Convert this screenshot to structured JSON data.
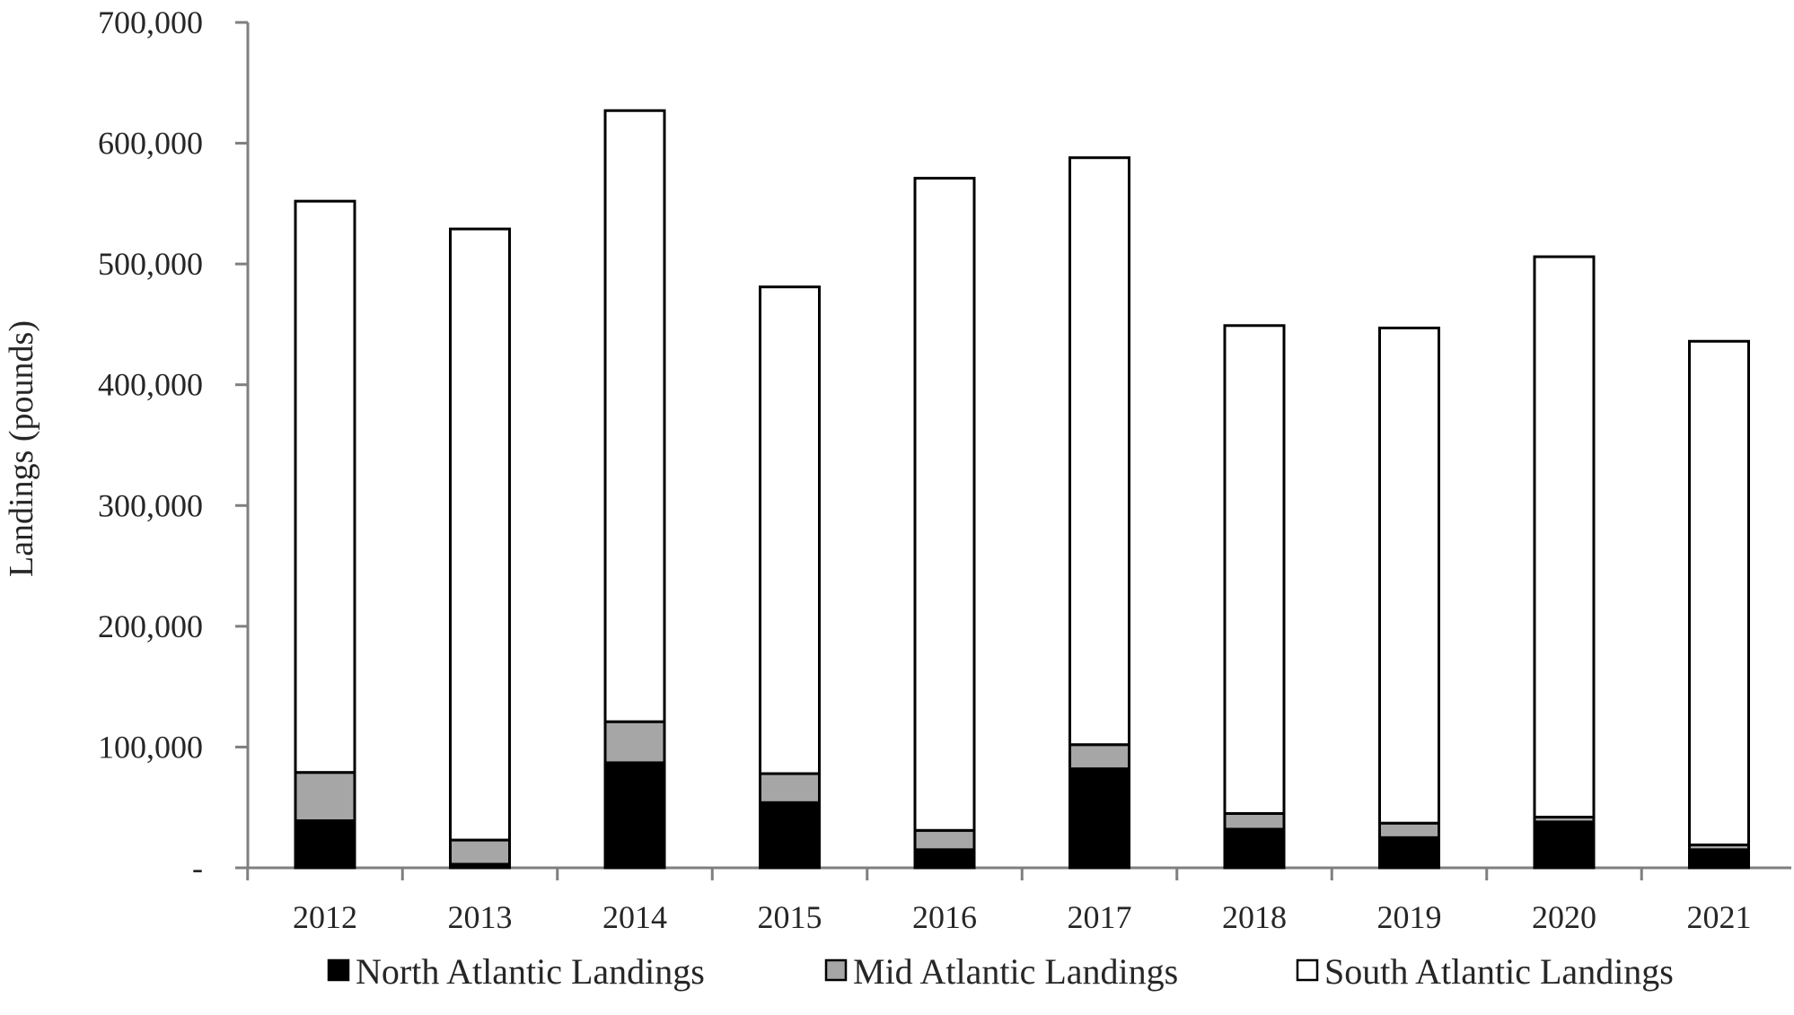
{
  "chart_data": {
    "type": "bar",
    "stacked": true,
    "title": "",
    "xlabel": "",
    "ylabel": "Landings (pounds)",
    "ylim": [
      0,
      700000
    ],
    "y_ticks": [
      0,
      100000,
      200000,
      300000,
      400000,
      500000,
      600000,
      700000
    ],
    "y_tick_labels": [
      "-",
      "100,000",
      "200,000",
      "300,000",
      "400,000",
      "500,000",
      "600,000",
      "700,000"
    ],
    "categories": [
      "2012",
      "2013",
      "2014",
      "2015",
      "2016",
      "2017",
      "2018",
      "2019",
      "2020",
      "2021"
    ],
    "series": [
      {
        "name": "North Atlantic Landings",
        "color": "#000000",
        "values": [
          39000,
          3000,
          87000,
          54000,
          15000,
          82000,
          32000,
          25000,
          38000,
          15000
        ]
      },
      {
        "name": "Mid Atlantic Landings",
        "color": "#a6a6a6",
        "values": [
          40000,
          20000,
          34000,
          24000,
          16000,
          20000,
          13000,
          12000,
          4000,
          4000
        ]
      },
      {
        "name": "South Atlantic Landings",
        "color": "#ffffff",
        "values": [
          473000,
          506000,
          506000,
          403000,
          540000,
          486000,
          404000,
          410000,
          464000,
          417000
        ]
      }
    ],
    "grid": false,
    "legend_position": "bottom"
  }
}
